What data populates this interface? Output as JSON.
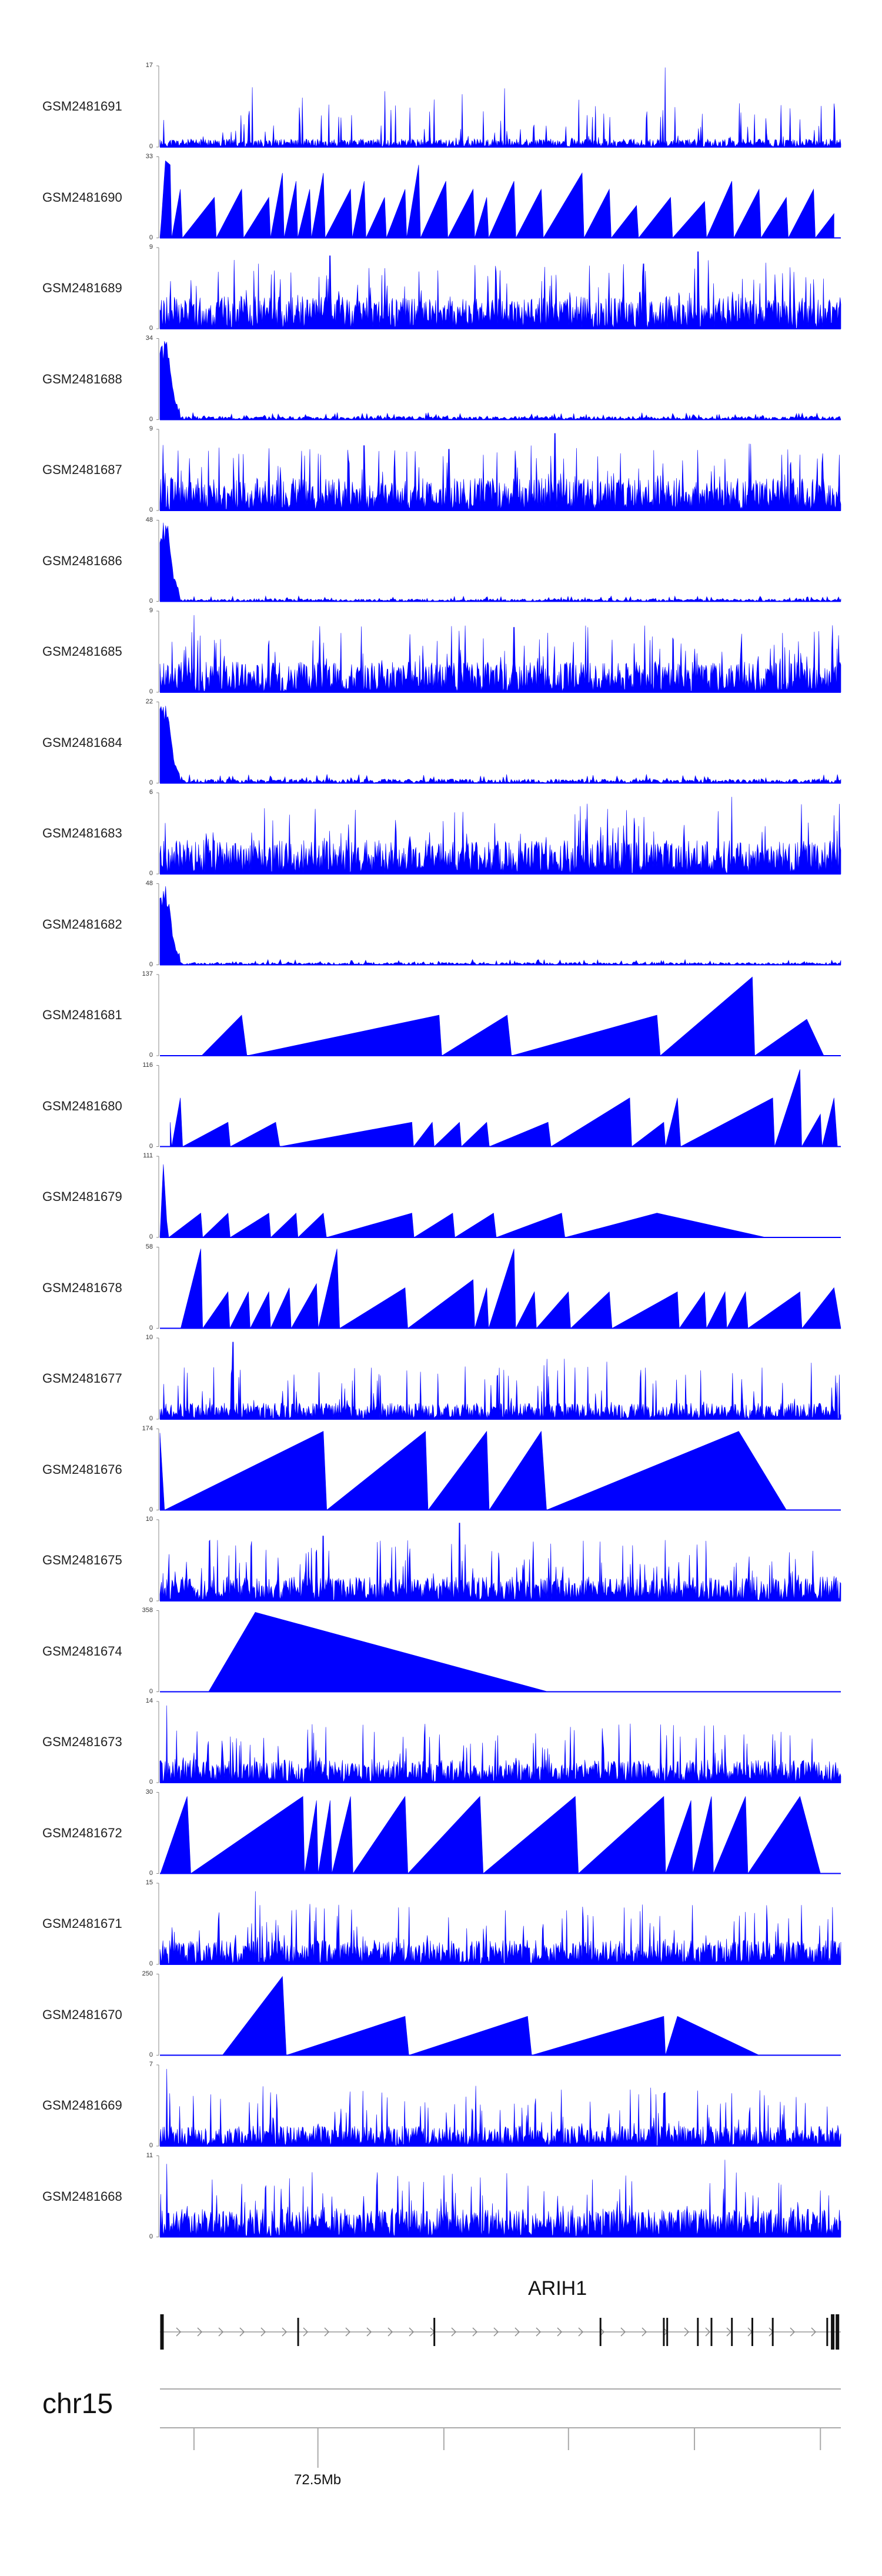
{
  "chart_data": {
    "type": "area",
    "color": "#0000FF",
    "tracks": [
      {
        "name": "GSM2481691",
        "ymax": "17",
        "ymin": "0",
        "style": "noise",
        "seed": 11,
        "base": 0.1,
        "spikes": [
          [
            0.742,
            0.98
          ]
        ]
      },
      {
        "name": "GSM2481690",
        "ymax": "33",
        "ymin": "0",
        "style": "triangles",
        "seed": 12,
        "peaks": [
          [
            0.002,
            0.2
          ],
          [
            0.008,
            0.95
          ],
          [
            0.015,
            0.9
          ],
          [
            0.03,
            0.6
          ],
          [
            0.08,
            0.5
          ],
          [
            0.12,
            0.6
          ],
          [
            0.16,
            0.5
          ],
          [
            0.18,
            0.8
          ],
          [
            0.2,
            0.7
          ],
          [
            0.22,
            0.6
          ],
          [
            0.24,
            0.8
          ],
          [
            0.28,
            0.6
          ],
          [
            0.3,
            0.7
          ],
          [
            0.33,
            0.5
          ],
          [
            0.36,
            0.6
          ],
          [
            0.38,
            0.9
          ],
          [
            0.42,
            0.7
          ],
          [
            0.46,
            0.6
          ],
          [
            0.48,
            0.5
          ],
          [
            0.52,
            0.7
          ],
          [
            0.56,
            0.6
          ],
          [
            0.62,
            0.8
          ],
          [
            0.66,
            0.6
          ],
          [
            0.7,
            0.4
          ],
          [
            0.75,
            0.5
          ],
          [
            0.8,
            0.45
          ],
          [
            0.84,
            0.7
          ],
          [
            0.88,
            0.6
          ],
          [
            0.92,
            0.5
          ],
          [
            0.96,
            0.6
          ],
          [
            0.99,
            0.3
          ]
        ],
        "end": 0.99
      },
      {
        "name": "GSM2481689",
        "ymax": "9",
        "ymin": "0",
        "style": "noise",
        "seed": 13,
        "base": 0.4,
        "spikes": [
          [
            0.25,
            0.9
          ],
          [
            0.79,
            0.95
          ],
          [
            0.71,
            0.8
          ]
        ]
      },
      {
        "name": "GSM2481688",
        "ymax": "34",
        "ymin": "0",
        "style": "decay",
        "seed": 14,
        "base": 0.04
      },
      {
        "name": "GSM2481687",
        "ymax": "9",
        "ymin": "0",
        "style": "noise",
        "seed": 15,
        "base": 0.4,
        "spikes": [
          [
            0.58,
            0.95
          ],
          [
            0.3,
            0.8
          ]
        ]
      },
      {
        "name": "GSM2481686",
        "ymax": "48",
        "ymin": "0",
        "style": "decay",
        "seed": 16,
        "base": 0.03
      },
      {
        "name": "GSM2481685",
        "ymax": "9",
        "ymin": "0",
        "style": "noise",
        "seed": 17,
        "base": 0.38,
        "spikes": [
          [
            0.05,
            0.95
          ],
          [
            0.52,
            0.8
          ]
        ]
      },
      {
        "name": "GSM2481684",
        "ymax": "22",
        "ymin": "0",
        "style": "decay",
        "seed": 18,
        "base": 0.05
      },
      {
        "name": "GSM2481683",
        "ymax": "6",
        "ymin": "0",
        "style": "noise",
        "seed": 19,
        "base": 0.42,
        "spikes": [
          [
            0.84,
            0.95
          ]
        ]
      },
      {
        "name": "GSM2481682",
        "ymax": "48",
        "ymin": "0",
        "style": "decay",
        "seed": 20,
        "base": 0.03
      },
      {
        "name": "GSM2481681",
        "ymax": "137",
        "ymin": "0",
        "style": "triangles",
        "seed": 21,
        "peaks": [
          [
            0.12,
            0.5
          ],
          [
            0.41,
            0.5
          ],
          [
            0.51,
            0.5
          ],
          [
            0.73,
            0.5
          ],
          [
            0.87,
            0.97
          ],
          [
            0.95,
            0.45
          ]
        ],
        "start": 0.06,
        "end": 0.975
      },
      {
        "name": "GSM2481680",
        "ymax": "116",
        "ymin": "0",
        "style": "triangles",
        "seed": 22,
        "peaks": [
          [
            0.005,
            0.3
          ],
          [
            0.03,
            0.6
          ],
          [
            0.1,
            0.3
          ],
          [
            0.17,
            0.3
          ],
          [
            0.37,
            0.3
          ],
          [
            0.4,
            0.3
          ],
          [
            0.44,
            0.3
          ],
          [
            0.48,
            0.3
          ],
          [
            0.57,
            0.3
          ],
          [
            0.69,
            0.6
          ],
          [
            0.74,
            0.3
          ],
          [
            0.76,
            0.6
          ],
          [
            0.9,
            0.6
          ],
          [
            0.94,
            0.95
          ],
          [
            0.97,
            0.4
          ],
          [
            0.99,
            0.6
          ]
        ],
        "start": 0.015,
        "end": 0.995
      },
      {
        "name": "GSM2481679",
        "ymax": "111",
        "ymin": "0",
        "style": "triangles",
        "seed": 23,
        "peaks": [
          [
            0.005,
            0.9
          ],
          [
            0.01,
            0.2
          ],
          [
            0.06,
            0.3
          ],
          [
            0.1,
            0.3
          ],
          [
            0.16,
            0.3
          ],
          [
            0.2,
            0.3
          ],
          [
            0.24,
            0.3
          ],
          [
            0.37,
            0.3
          ],
          [
            0.43,
            0.3
          ],
          [
            0.49,
            0.3
          ],
          [
            0.59,
            0.3
          ],
          [
            0.73,
            0.3
          ]
        ],
        "end": 0.89
      },
      {
        "name": "GSM2481678",
        "ymax": "58",
        "ymin": "0",
        "style": "triangles",
        "seed": 24,
        "peaks": [
          [
            0.06,
            0.98
          ],
          [
            0.1,
            0.45
          ],
          [
            0.13,
            0.45
          ],
          [
            0.16,
            0.45
          ],
          [
            0.19,
            0.5
          ],
          [
            0.23,
            0.55
          ],
          [
            0.26,
            0.98
          ],
          [
            0.36,
            0.5
          ],
          [
            0.46,
            0.6
          ],
          [
            0.48,
            0.5
          ],
          [
            0.52,
            0.98
          ],
          [
            0.55,
            0.45
          ],
          [
            0.6,
            0.45
          ],
          [
            0.66,
            0.45
          ],
          [
            0.76,
            0.45
          ],
          [
            0.8,
            0.45
          ],
          [
            0.83,
            0.45
          ],
          [
            0.86,
            0.45
          ],
          [
            0.94,
            0.45
          ],
          [
            0.99,
            0.5
          ]
        ],
        "start": 0.03,
        "end": 1.0
      },
      {
        "name": "GSM2481677",
        "ymax": "10",
        "ymin": "0",
        "style": "noise",
        "seed": 25,
        "base": 0.2,
        "spikes": [
          [
            0.107,
            0.95
          ]
        ]
      },
      {
        "name": "GSM2481676",
        "ymax": "174",
        "ymin": "0",
        "style": "triangles",
        "seed": 26,
        "peaks": [
          [
            0.0,
            0.95
          ],
          [
            0.24,
            0.97
          ],
          [
            0.39,
            0.97
          ],
          [
            0.48,
            0.97
          ],
          [
            0.56,
            0.97
          ],
          [
            0.85,
            0.97
          ]
        ],
        "end": 0.92
      },
      {
        "name": "GSM2481675",
        "ymax": "10",
        "ymin": "0",
        "style": "noise",
        "seed": 27,
        "base": 0.3,
        "spikes": [
          [
            0.44,
            0.96
          ],
          [
            0.24,
            0.8
          ]
        ]
      },
      {
        "name": "GSM2481674",
        "ymax": "358",
        "ymin": "0",
        "style": "triangles",
        "seed": 28,
        "peaks": [
          [
            0.14,
            0.98
          ]
        ],
        "start": 0.07,
        "end": 0.57
      },
      {
        "name": "GSM2481673",
        "ymax": "14",
        "ymin": "0",
        "style": "noise",
        "seed": 29,
        "base": 0.28,
        "spikes": [
          [
            0.01,
            0.95
          ]
        ]
      },
      {
        "name": "GSM2481672",
        "ymax": "30",
        "ymin": "0",
        "style": "triangles",
        "seed": 30,
        "peaks": [
          [
            0.04,
            0.95
          ],
          [
            0.21,
            0.95
          ],
          [
            0.23,
            0.9
          ],
          [
            0.25,
            0.9
          ],
          [
            0.28,
            0.95
          ],
          [
            0.36,
            0.95
          ],
          [
            0.47,
            0.95
          ],
          [
            0.61,
            0.95
          ],
          [
            0.74,
            0.95
          ],
          [
            0.78,
            0.9
          ],
          [
            0.81,
            0.95
          ],
          [
            0.86,
            0.95
          ],
          [
            0.94,
            0.95
          ]
        ],
        "end": 0.97
      },
      {
        "name": "GSM2481671",
        "ymax": "15",
        "ymin": "0",
        "style": "noise",
        "seed": 31,
        "base": 0.3,
        "spikes": [
          [
            0.14,
            0.9
          ]
        ]
      },
      {
        "name": "GSM2481670",
        "ymax": "250",
        "ymin": "0",
        "style": "triangles",
        "seed": 32,
        "peaks": [
          [
            0.18,
            0.97
          ],
          [
            0.36,
            0.48
          ],
          [
            0.54,
            0.48
          ],
          [
            0.74,
            0.48
          ],
          [
            0.76,
            0.48
          ]
        ],
        "start": 0.09,
        "end": 0.88
      },
      {
        "name": "GSM2481669",
        "ymax": "7",
        "ymin": "0",
        "style": "noise",
        "seed": 33,
        "base": 0.25,
        "spikes": [
          [
            0.01,
            0.95
          ],
          [
            0.74,
            0.65
          ]
        ]
      },
      {
        "name": "GSM2481668",
        "ymax": "11",
        "ymin": "0",
        "style": "noise",
        "seed": 34,
        "base": 0.35,
        "spikes": [
          [
            0.01,
            0.9
          ],
          [
            0.83,
            0.95
          ]
        ]
      }
    ],
    "gene": {
      "name": "ARIH1",
      "exons": [
        0.003,
        0.203,
        0.403,
        0.647,
        0.74,
        0.745,
        0.79,
        0.81,
        0.84,
        0.87,
        0.9,
        0.98,
        0.988,
        0.995
      ]
    },
    "chromosome": "chr15",
    "axis": {
      "major_tick_label": "72.5Mb",
      "major_tick_pos": 0.232,
      "minor_ticks": [
        0.05,
        0.232,
        0.417,
        0.6,
        0.785,
        0.97
      ]
    }
  }
}
